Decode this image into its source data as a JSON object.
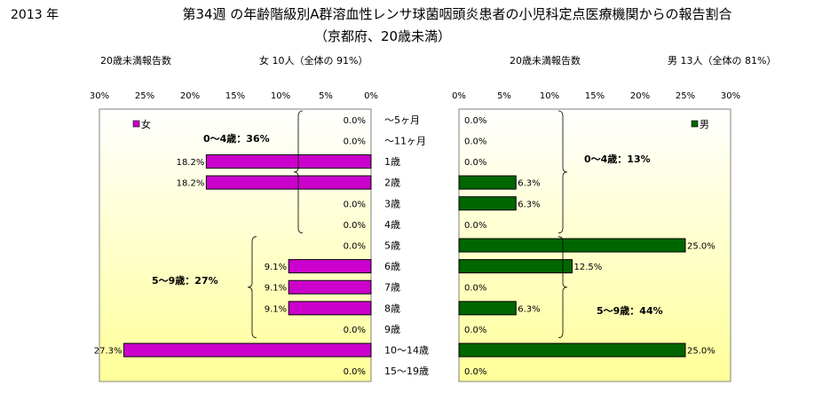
{
  "header": {
    "year": "2013 年",
    "title": "第34週 の年齢階級別A群溶血性レンサ球菌咽頭炎患者の小児科定点医療機関からの報告割合",
    "subtitle": "（京都府、20歳未満）"
  },
  "colors": {
    "female_bar": "#cc00cc",
    "male_bar": "#006600",
    "plot_gradient_top": "#ffffff",
    "plot_gradient_bottom": "#ffff99"
  },
  "chart_data": [
    {
      "type": "bar",
      "orientation": "horizontal",
      "direction": "right-to-left",
      "caption_left": "20歳未満報告数",
      "caption_right": "女 10人（全体の 91%）",
      "legend": "女",
      "legend_position": "top-left",
      "x_ticks": [
        "30%",
        "25%",
        "20%",
        "15%",
        "10%",
        "5%",
        "0%"
      ],
      "xlim": [
        0,
        30
      ],
      "categories": [
        "～5ヶ月",
        "～11ヶ月",
        "1歳",
        "2歳",
        "3歳",
        "4歳",
        "5歳",
        "6歳",
        "7歳",
        "8歳",
        "9歳",
        "10～14歳",
        "15～19歳"
      ],
      "values": [
        0.0,
        0.0,
        18.2,
        18.2,
        0.0,
        0.0,
        0.0,
        9.1,
        9.1,
        9.1,
        0.0,
        27.3,
        0.0
      ],
      "data_labels": [
        "0.0%",
        "0.0%",
        "18.2%",
        "18.2%",
        "0.0%",
        "0.0%",
        "0.0%",
        "9.1%",
        "9.1%",
        "9.1%",
        "0.0%",
        "27.3%",
        "0.0%"
      ],
      "annotations": [
        {
          "text": "0～4歳：36%",
          "from_index": 0,
          "to_index": 5
        },
        {
          "text": "5～9歳：27%",
          "from_index": 6,
          "to_index": 10
        }
      ]
    },
    {
      "type": "bar",
      "orientation": "horizontal",
      "direction": "left-to-right",
      "caption_left": "20歳未満報告数",
      "caption_right": "男 13人（全体の 81%）",
      "legend": "男",
      "legend_position": "top-right",
      "x_ticks": [
        "0%",
        "5%",
        "10%",
        "15%",
        "20%",
        "25%",
        "30%"
      ],
      "xlim": [
        0,
        30
      ],
      "categories": [
        "～5ヶ月",
        "～11ヶ月",
        "1歳",
        "2歳",
        "3歳",
        "4歳",
        "5歳",
        "6歳",
        "7歳",
        "8歳",
        "9歳",
        "10～14歳",
        "15～19歳"
      ],
      "values": [
        0.0,
        0.0,
        0.0,
        6.3,
        6.3,
        0.0,
        25.0,
        12.5,
        0.0,
        6.3,
        0.0,
        25.0,
        0.0
      ],
      "data_labels": [
        "0.0%",
        "0.0%",
        "0.0%",
        "6.3%",
        "6.3%",
        "0.0%",
        "25.0%",
        "12.5%",
        "0.0%",
        "6.3%",
        "0.0%",
        "25.0%",
        "0.0%"
      ],
      "annotations": [
        {
          "text": "0～4歳：13%",
          "from_index": 0,
          "to_index": 5
        },
        {
          "text": "5～9歳：44%",
          "from_index": 6,
          "to_index": 10
        }
      ]
    }
  ]
}
